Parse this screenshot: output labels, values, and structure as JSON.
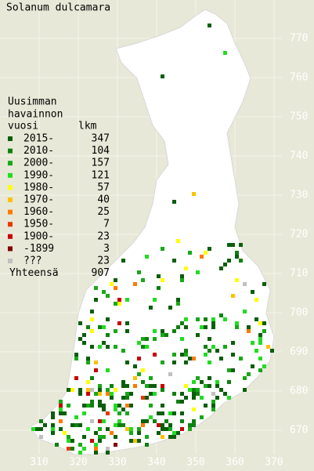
{
  "title": "Solanum dulcamara",
  "legend": {
    "heading": [
      "Uusimman",
      "havainnon",
      "vuosi"
    ],
    "count_heading": "lkm",
    "items": [
      {
        "label": "2015-",
        "count": 347,
        "color": "#0b5e0b"
      },
      {
        "label": "2010-",
        "count": 104,
        "color": "#108010"
      },
      {
        "label": "2000-",
        "count": 157,
        "color": "#18a818"
      },
      {
        "label": "1990-",
        "count": 121,
        "color": "#22dc22"
      },
      {
        "label": "1980-",
        "count": 57,
        "color": "#ffff00"
      },
      {
        "label": "1970-",
        "count": 40,
        "color": "#ffc000"
      },
      {
        "label": "1960-",
        "count": 25,
        "color": "#ff7a00"
      },
      {
        "label": "1950-",
        "count": 7,
        "color": "#e83800"
      },
      {
        "label": "1900-",
        "count": 23,
        "color": "#c80000"
      },
      {
        "label": "-1899",
        "count": 3,
        "color": "#800000"
      },
      {
        "label": "???",
        "count": 23,
        "color": "#c0c0c0"
      }
    ],
    "total_label": "Yhteensä",
    "total": 907
  },
  "grid": {
    "x_labels": [
      310,
      320,
      330,
      340,
      350,
      360,
      370
    ],
    "y_labels": [
      670,
      680,
      690,
      700,
      710,
      720,
      730,
      740,
      750,
      760,
      770
    ]
  }
}
